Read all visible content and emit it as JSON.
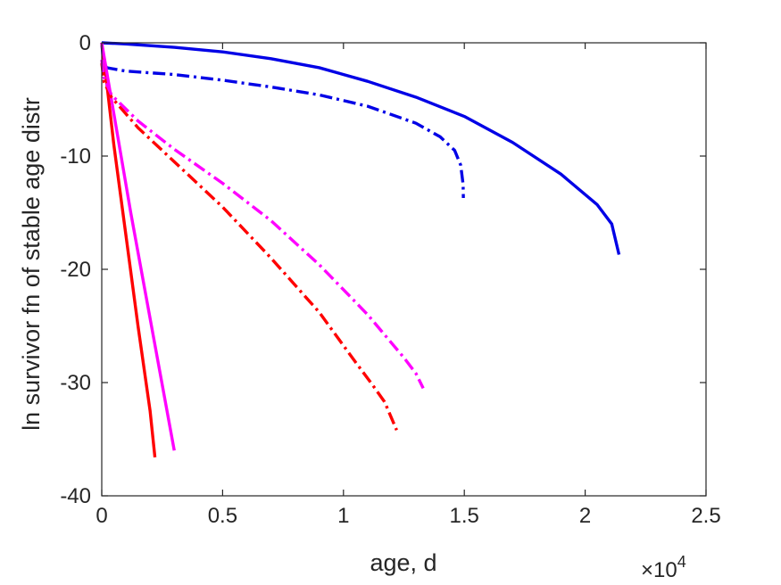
{
  "chart_data": {
    "type": "line",
    "xlabel": "age, d",
    "ylabel": "ln survivor fn of stable age distr",
    "x_exponent_label": {
      "base": "×10",
      "exp": "4"
    },
    "xlim": [
      0,
      25000
    ],
    "ylim": [
      -40,
      0
    ],
    "xticks": [
      0,
      5000,
      10000,
      15000,
      20000,
      25000
    ],
    "xtick_labels": [
      "0",
      "0.5",
      "1",
      "1.5",
      "2",
      "2.5"
    ],
    "yticks": [
      0,
      -10,
      -20,
      -30,
      -40
    ],
    "ytick_labels": [
      "0",
      "-10",
      "-20",
      "-30",
      "-40"
    ],
    "grid": false,
    "colors": {
      "axis": "#262626",
      "blue": "#0000e6",
      "red": "#ff0000",
      "magenta": "#ff00ff"
    },
    "series": [
      {
        "color": "#0000e6",
        "style": "solid",
        "points": [
          [
            0,
            0
          ],
          [
            1000,
            -0.1
          ],
          [
            3000,
            -0.4
          ],
          [
            5000,
            -0.8
          ],
          [
            7000,
            -1.4
          ],
          [
            9000,
            -2.2
          ],
          [
            11000,
            -3.4
          ],
          [
            13000,
            -4.8
          ],
          [
            15000,
            -6.5
          ],
          [
            17000,
            -8.8
          ],
          [
            19000,
            -11.6
          ],
          [
            20500,
            -14.3
          ],
          [
            21100,
            -16.0
          ],
          [
            21400,
            -18.7
          ]
        ]
      },
      {
        "color": "#0000e6",
        "style": "dashdot",
        "points": [
          [
            0,
            0
          ],
          [
            60,
            -1.5
          ],
          [
            200,
            -2.2
          ],
          [
            1000,
            -2.5
          ],
          [
            3000,
            -2.8
          ],
          [
            5000,
            -3.3
          ],
          [
            7000,
            -3.9
          ],
          [
            9000,
            -4.6
          ],
          [
            11000,
            -5.6
          ],
          [
            13000,
            -7.1
          ],
          [
            14000,
            -8.3
          ],
          [
            14600,
            -9.5
          ],
          [
            14850,
            -10.8
          ],
          [
            14950,
            -12.5
          ],
          [
            14960,
            -13.7
          ]
        ]
      },
      {
        "color": "#ff0000",
        "style": "solid",
        "points": [
          [
            0,
            0
          ],
          [
            150,
            -2.5
          ],
          [
            500,
            -9
          ],
          [
            1000,
            -17
          ],
          [
            1500,
            -25
          ],
          [
            2000,
            -32.5
          ],
          [
            2200,
            -36.6
          ]
        ]
      },
      {
        "color": "#ff00ff",
        "style": "solid",
        "points": [
          [
            0,
            0
          ],
          [
            200,
            -2.5
          ],
          [
            600,
            -7.5
          ],
          [
            1200,
            -15
          ],
          [
            1800,
            -22
          ],
          [
            2400,
            -29
          ],
          [
            3000,
            -36.0
          ]
        ]
      },
      {
        "color": "#ff0000",
        "style": "dashdot",
        "points": [
          [
            0,
            -1.8
          ],
          [
            100,
            -3.5
          ],
          [
            400,
            -4.8
          ],
          [
            1500,
            -7.5
          ],
          [
            3000,
            -10.5
          ],
          [
            5000,
            -14.5
          ],
          [
            7000,
            -19.0
          ],
          [
            9000,
            -23.8
          ],
          [
            10500,
            -28.2
          ],
          [
            11200,
            -30.2
          ],
          [
            11700,
            -31.7
          ],
          [
            12200,
            -34.2
          ]
        ]
      },
      {
        "color": "#ff00ff",
        "style": "dashdot",
        "points": [
          [
            0,
            -1.5
          ],
          [
            80,
            -3.0
          ],
          [
            400,
            -4.6
          ],
          [
            1500,
            -6.9
          ],
          [
            3000,
            -9.4
          ],
          [
            5000,
            -12.4
          ],
          [
            7000,
            -15.7
          ],
          [
            9000,
            -19.6
          ],
          [
            11000,
            -24.0
          ],
          [
            12500,
            -27.8
          ],
          [
            13000,
            -29.2
          ],
          [
            13300,
            -30.5
          ]
        ]
      }
    ]
  }
}
